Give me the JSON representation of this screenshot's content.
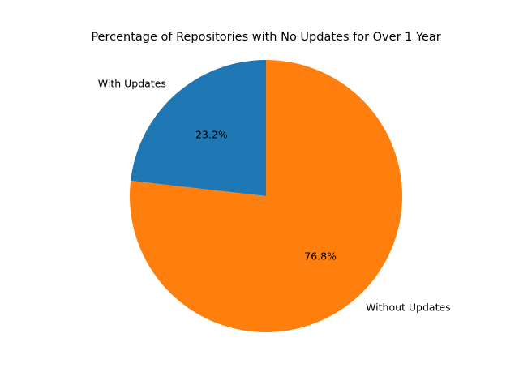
{
  "chart_data": {
    "type": "pie",
    "title": "Percentage of Repositories with No Updates for Over 1 Year",
    "labels": [
      "With Updates",
      "Without Updates"
    ],
    "values": [
      23.2,
      76.8
    ],
    "percent_labels": [
      "23.2%",
      "76.8%"
    ],
    "colors": [
      "#1f77b4",
      "#ff7f0e"
    ],
    "start_angle_deg": 90,
    "direction": "counterclockwise",
    "legend": "none"
  }
}
